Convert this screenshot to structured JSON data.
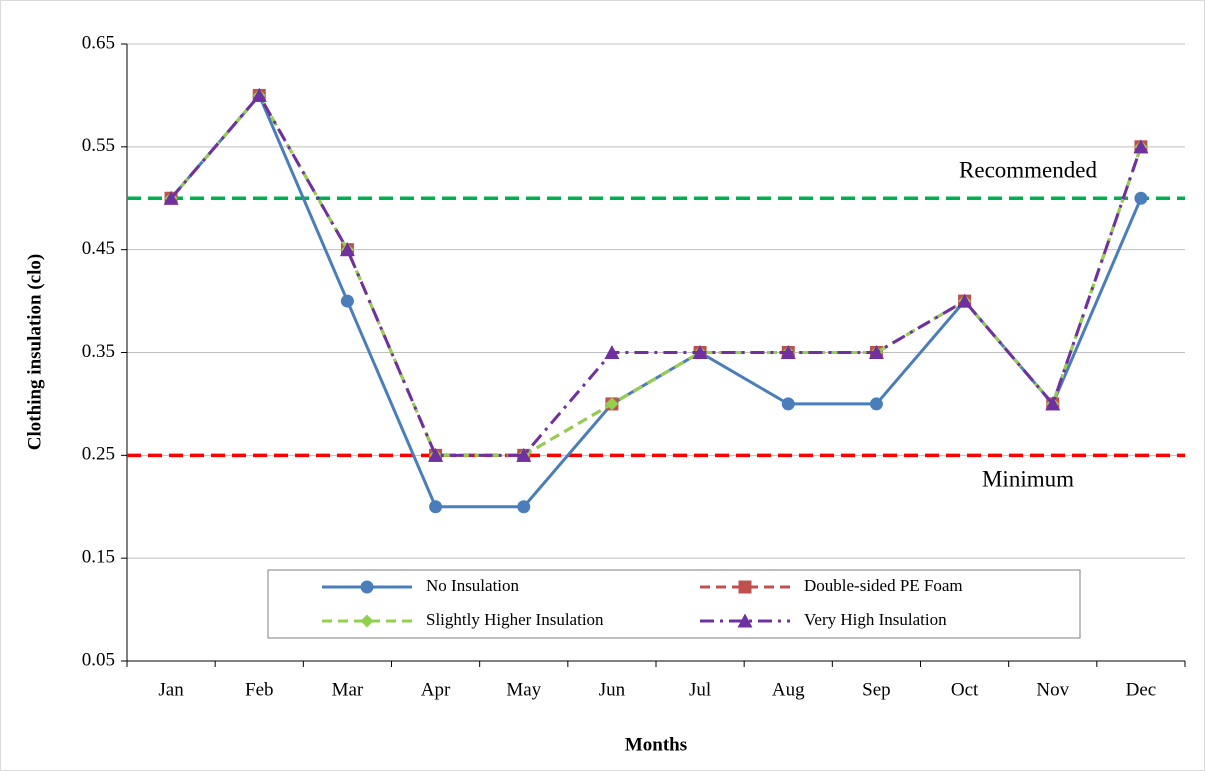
{
  "chart_data": {
    "type": "line",
    "y_label": "Clothing insulation (clo)",
    "x_label": "Months",
    "categories": [
      "Jan",
      "Feb",
      "Mar",
      "Apr",
      "May",
      "Jun",
      "Jul",
      "Aug",
      "Sep",
      "Oct",
      "Nov",
      "Dec"
    ],
    "series": [
      {
        "name": "No Insulation",
        "color": "#4a7ebb",
        "marker": "circle",
        "dash": "solid",
        "values": [
          0.5,
          0.6,
          0.4,
          0.2,
          0.2,
          0.3,
          0.35,
          0.3,
          0.3,
          0.4,
          0.3,
          0.5
        ]
      },
      {
        "name": "Double-sided PE Foam",
        "color": "#c0504d",
        "marker": "square",
        "dash": "dashed",
        "values": [
          0.5,
          0.6,
          0.45,
          0.25,
          0.25,
          0.3,
          0.35,
          0.35,
          0.35,
          0.4,
          0.3,
          0.55
        ]
      },
      {
        "name": "Slightly Higher Insulation",
        "color": "#92d050",
        "marker": "diamond",
        "dash": "dashed",
        "values": [
          0.5,
          0.6,
          0.45,
          0.25,
          0.25,
          0.3,
          0.35,
          0.35,
          0.35,
          0.4,
          0.3,
          0.55
        ]
      },
      {
        "name": "Very High Insulation",
        "color": "#7030a0",
        "marker": "triangle",
        "dash": "dashdot",
        "values": [
          0.5,
          0.6,
          0.45,
          0.25,
          0.25,
          0.35,
          0.35,
          0.35,
          0.35,
          0.4,
          0.3,
          0.55
        ]
      }
    ],
    "reference_lines": [
      {
        "label": "Recommended",
        "value": 0.5,
        "color": "#00b050"
      },
      {
        "label": "Minimum",
        "value": 0.25,
        "color": "#ff0000"
      }
    ],
    "ylim": [
      0.05,
      0.65
    ],
    "yticks": [
      0.05,
      0.15,
      0.25,
      0.35,
      0.45,
      0.55,
      0.65
    ],
    "grid": true
  }
}
